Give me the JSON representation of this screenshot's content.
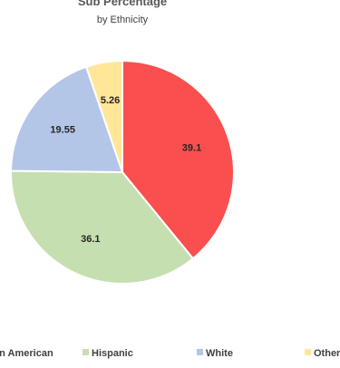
{
  "chart_data": {
    "type": "pie",
    "title": "Sub Percentage",
    "subtitle": "by Ethnicity",
    "categories": [
      "African American",
      "Hispanic",
      "White",
      "Other"
    ],
    "values": [
      39.1,
      36.1,
      19.55,
      5.26
    ],
    "value_labels": [
      "39.1",
      "36.1",
      "19.55",
      "5.26"
    ],
    "colors": [
      "#f94f4f",
      "#c6dfb0",
      "#b4c6e7",
      "#ffe699"
    ],
    "legend": {
      "position": "bottom",
      "labels": [
        "African American",
        "Hispanic",
        "White",
        "Other"
      ]
    }
  }
}
